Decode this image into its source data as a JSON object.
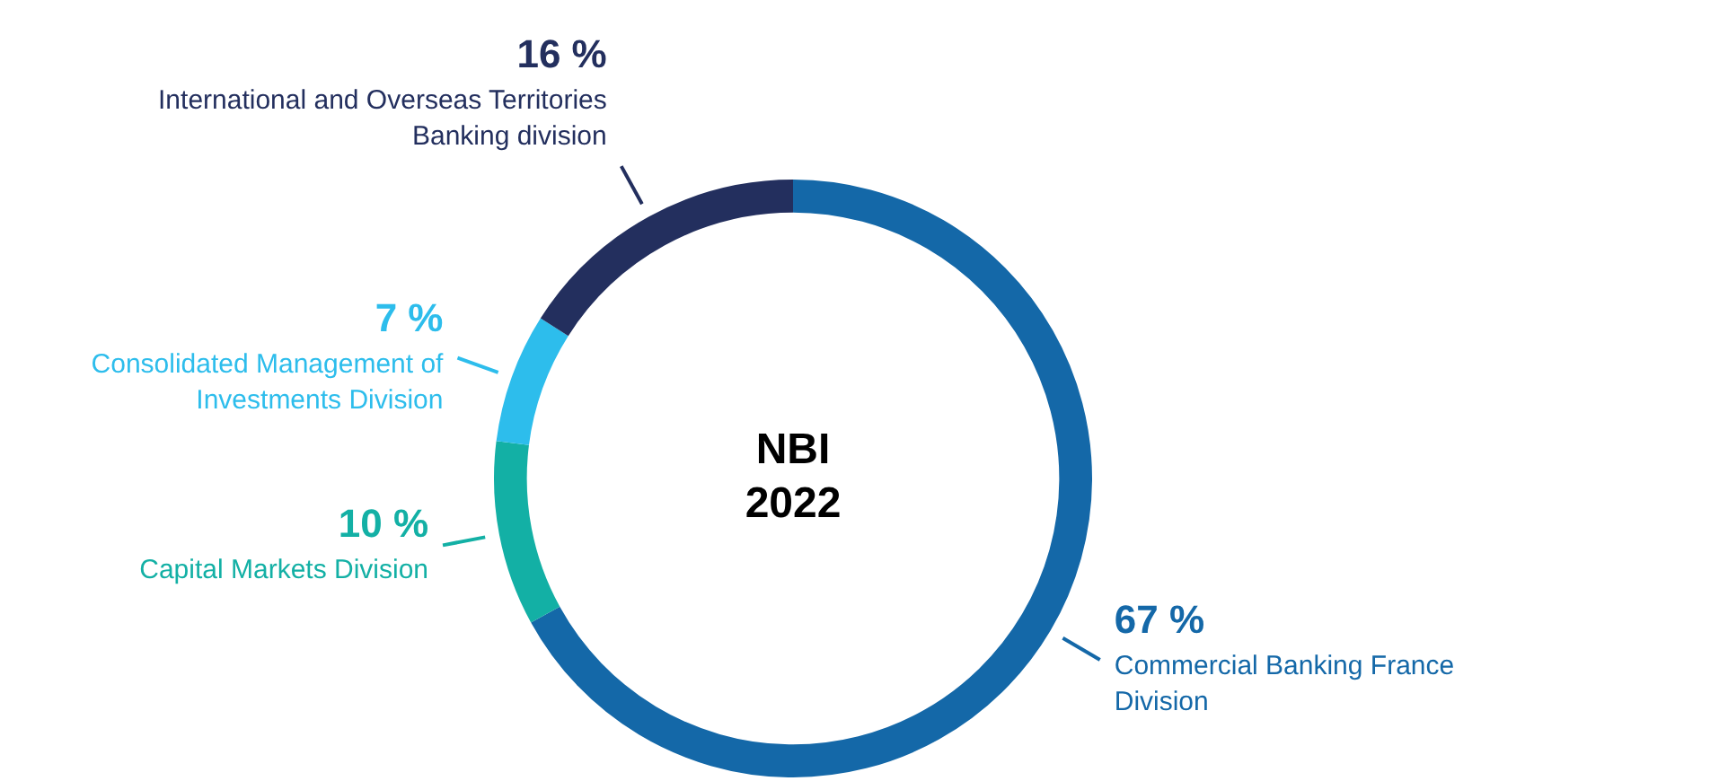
{
  "chart_data": {
    "type": "donut",
    "title": "NBI 2022",
    "categories": [
      "Commercial Banking France Division",
      "Capital Markets Division",
      "Consolidated Management of Investments Division",
      "International and Overseas Territories Banking division"
    ],
    "values": [
      67,
      10,
      7,
      16
    ],
    "colors": [
      "#1468a8",
      "#13b0a5",
      "#2dbdec",
      "#232f5e"
    ],
    "value_labels": [
      "67 %",
      "10 %",
      "7 %",
      "16 %"
    ]
  }
}
